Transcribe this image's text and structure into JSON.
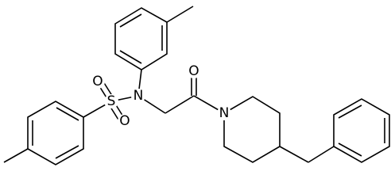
{
  "atoms": {
    "sulfonyl_o1": "O",
    "sulfur": "S",
    "sulfonyl_o2": "O",
    "sulfonamide_n": "N",
    "carbonyl_o": "O",
    "piperidine_n": "N"
  }
}
